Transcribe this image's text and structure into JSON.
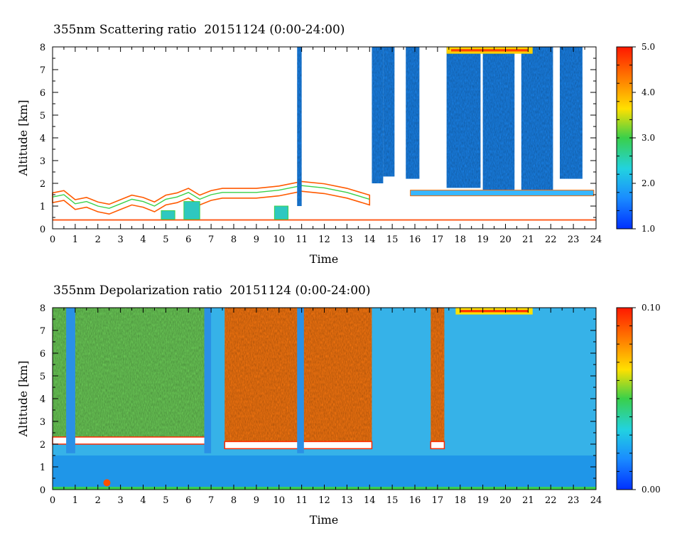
{
  "chart_data": [
    {
      "type": "heatmap",
      "title": "355nm Scattering ratio  20151124 (0:00-24:00)",
      "xlabel": "Time",
      "ylabel": "Altitude [km]",
      "xlim": [
        0,
        24
      ],
      "ylim": [
        0,
        8
      ],
      "x_ticks": [
        "0",
        "1",
        "2",
        "3",
        "4",
        "5",
        "6",
        "7",
        "8",
        "9",
        "10",
        "11",
        "12",
        "13",
        "14",
        "15",
        "16",
        "17",
        "18",
        "19",
        "20",
        "21",
        "22",
        "23",
        "24"
      ],
      "y_ticks": [
        "0",
        "1",
        "2",
        "3",
        "4",
        "5",
        "6",
        "7",
        "8"
      ],
      "colorbar": {
        "min": 1.0,
        "max": 5.0,
        "tick_labels": [
          "1.0",
          "2.0",
          "3.0",
          "4.0",
          "5.0"
        ]
      },
      "cloud_columns": [
        {
          "x": [
            10.8,
            11.0
          ],
          "ytop": 8.0
        },
        {
          "x": [
            14.1,
            14.6
          ],
          "ytop": 8.0
        },
        {
          "x": [
            14.6,
            15.1
          ],
          "ytop": 8.0
        },
        {
          "x": [
            15.6,
            16.2
          ],
          "ytop": 8.0
        },
        {
          "x": [
            17.4,
            18.9
          ],
          "ytop": 8.0
        },
        {
          "x": [
            19.0,
            20.4
          ],
          "ytop": 8.0
        },
        {
          "x": [
            20.7,
            22.1
          ],
          "ytop": 8.0
        },
        {
          "x": [
            22.4,
            23.4
          ],
          "ytop": 8.0
        }
      ]
    },
    {
      "type": "heatmap",
      "title": "355nm Depolarization ratio  20151124 (0:00-24:00)",
      "xlabel": "Time",
      "ylabel": "Altitude [km]",
      "xlim": [
        0,
        24
      ],
      "ylim": [
        0,
        8
      ],
      "x_ticks": [
        "0",
        "1",
        "2",
        "3",
        "4",
        "5",
        "6",
        "7",
        "8",
        "9",
        "10",
        "11",
        "12",
        "13",
        "14",
        "15",
        "16",
        "17",
        "18",
        "19",
        "20",
        "21",
        "22",
        "23",
        "24"
      ],
      "y_ticks": [
        "0",
        "1",
        "2",
        "3",
        "4",
        "5",
        "6",
        "7",
        "8"
      ],
      "colorbar": {
        "min": 0.0,
        "max": 0.1,
        "tick_labels": [
          "0.00",
          "0.10"
        ]
      },
      "noisy_regions": [
        {
          "x": [
            0.0,
            6.8
          ],
          "ybottom": 2.0,
          "ytop": 8.0,
          "level": "medium"
        },
        {
          "x": [
            7.6,
            14.1
          ],
          "ybottom": 1.8,
          "ytop": 8.0,
          "level": "high"
        },
        {
          "x": [
            16.7,
            17.3
          ],
          "ybottom": 1.8,
          "ytop": 8.0,
          "level": "high"
        }
      ]
    }
  ],
  "colors": {
    "scale": [
      "#0030ff",
      "#1a8cff",
      "#22d2e0",
      "#3ad04a",
      "#ffe000",
      "#ff7a00",
      "#ff1800"
    ]
  }
}
